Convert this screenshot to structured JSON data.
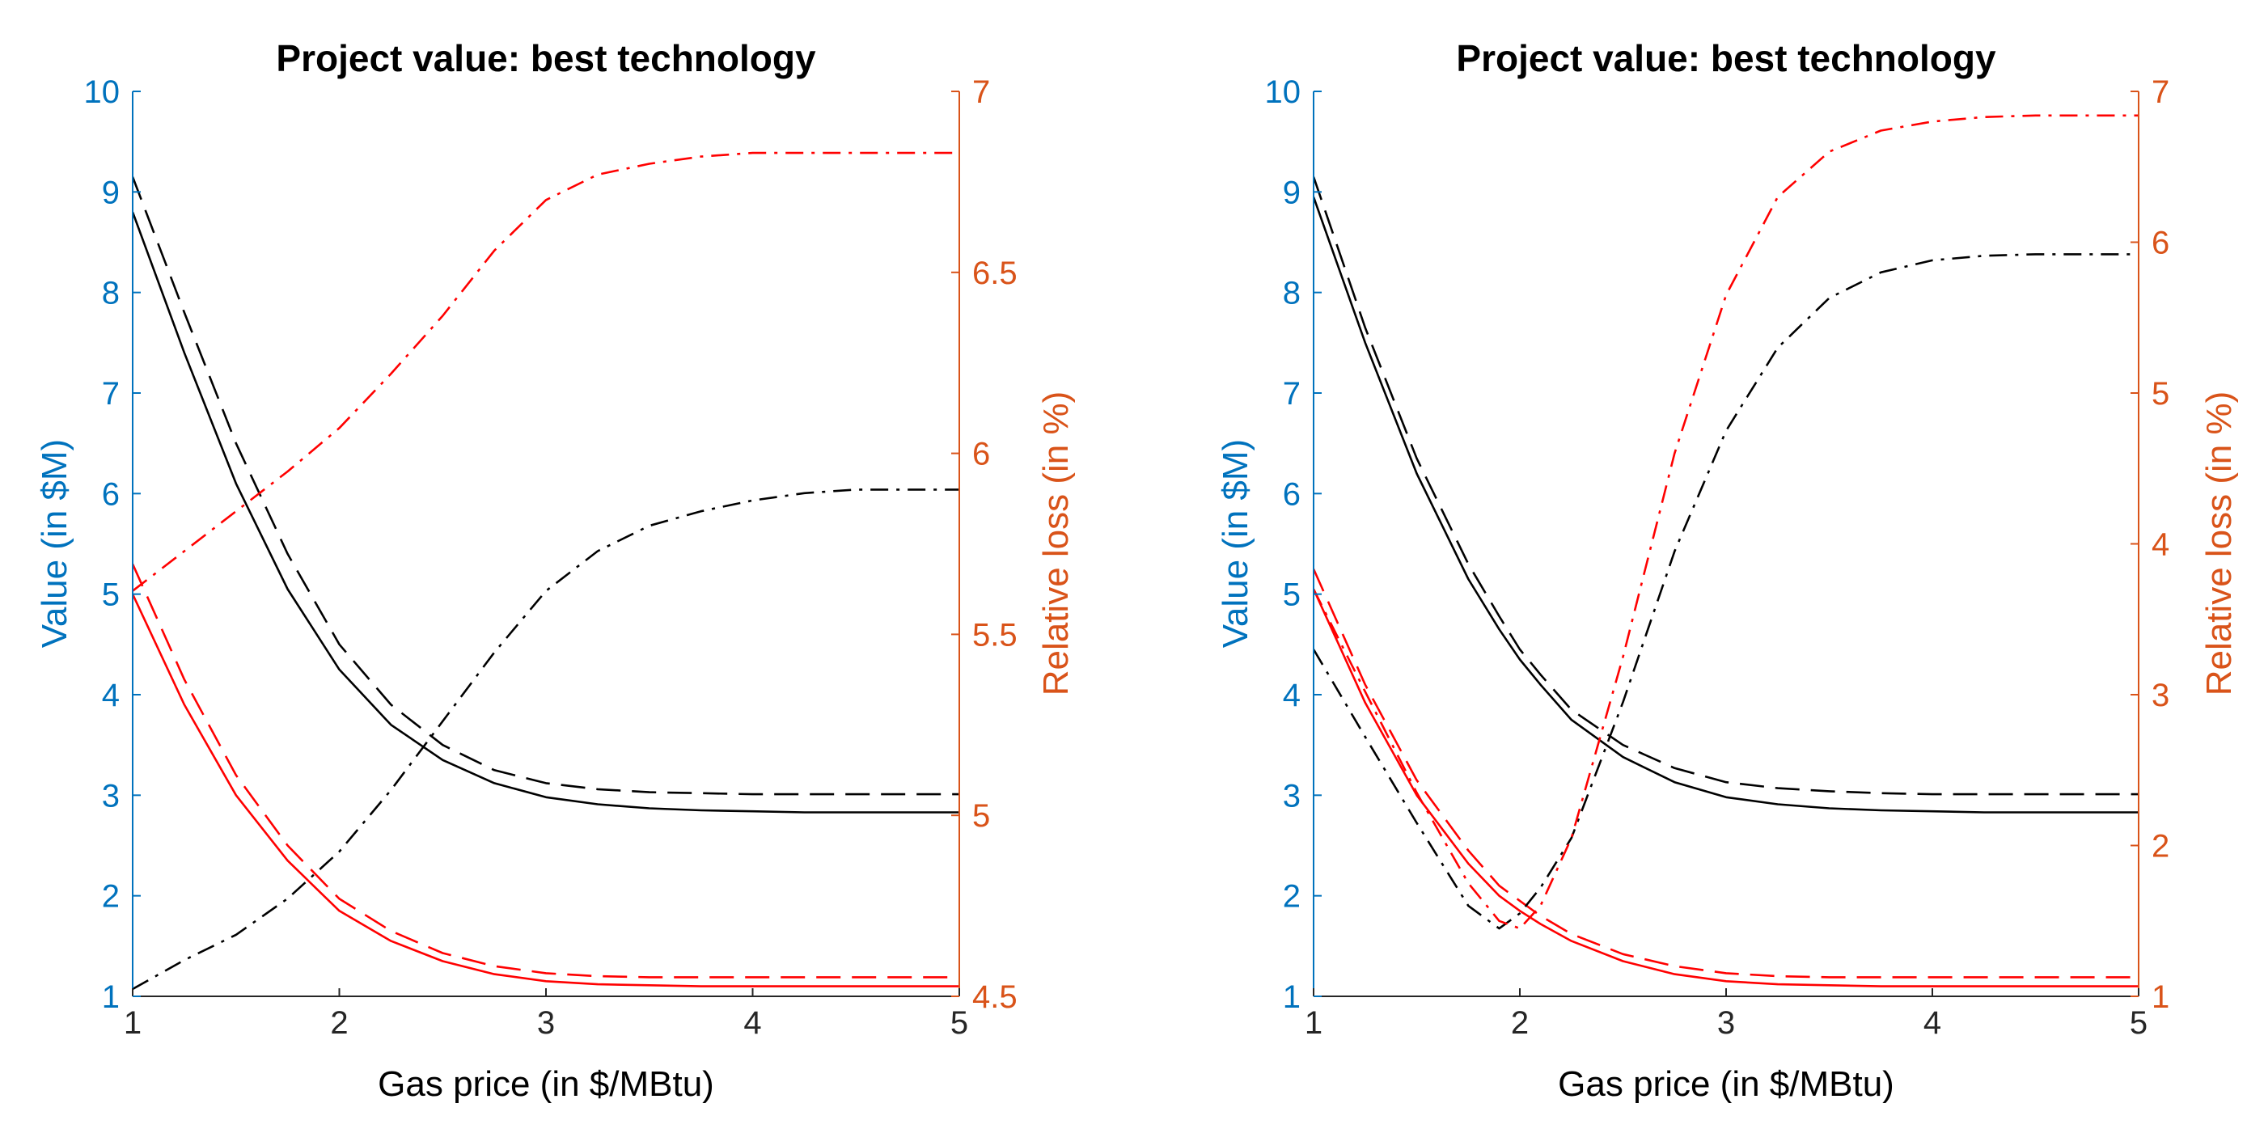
{
  "colors": {
    "left_axis": "#0072BD",
    "right_axis": "#D95319",
    "value_series": "#000000",
    "loss_series": "#FF0000",
    "axis_line": "#262626"
  },
  "chart_data": [
    {
      "type": "line",
      "title": "Project value: best technology",
      "xlabel": "Gas price (in $/MBtu)",
      "ylabel": "Value (in $M)",
      "ylabel_right": "Relative loss (in %)",
      "xlim": [
        1,
        5
      ],
      "ylim": [
        1,
        10
      ],
      "ylim_right": [
        4.5,
        7
      ],
      "x_ticks": [
        "1",
        "2",
        "3",
        "4",
        "5"
      ],
      "y_ticks": [
        "1",
        "2",
        "3",
        "4",
        "5",
        "6",
        "7",
        "8",
        "9",
        "10"
      ],
      "y_ticks_right": [
        "4.5",
        "5",
        "5.5",
        "6",
        "6.5",
        "7"
      ],
      "x": [
        1,
        1.25,
        1.5,
        1.75,
        2,
        2.25,
        2.5,
        2.75,
        3,
        3.25,
        3.5,
        3.75,
        4,
        4.25,
        4.5,
        4.75,
        5
      ],
      "series": [
        {
          "name": "value solid black",
          "axis": "left",
          "color": "#000000",
          "style": "solid",
          "values": [
            8.8,
            7.4,
            6.1,
            5.05,
            4.25,
            3.7,
            3.35,
            3.12,
            2.98,
            2.91,
            2.87,
            2.85,
            2.84,
            2.83,
            2.83,
            2.83,
            2.83
          ]
        },
        {
          "name": "value dashed black",
          "axis": "left",
          "color": "#000000",
          "style": "dashed",
          "values": [
            9.15,
            7.8,
            6.5,
            5.4,
            4.5,
            3.9,
            3.5,
            3.25,
            3.12,
            3.06,
            3.03,
            3.02,
            3.01,
            3.01,
            3.01,
            3.01,
            3.01
          ]
        },
        {
          "name": "value solid red",
          "axis": "left",
          "color": "#FF0000",
          "style": "solid",
          "values": [
            5.0,
            3.9,
            3.0,
            2.35,
            1.85,
            1.55,
            1.35,
            1.22,
            1.15,
            1.12,
            1.11,
            1.1,
            1.1,
            1.1,
            1.1,
            1.1,
            1.1
          ]
        },
        {
          "name": "value dashed red",
          "axis": "left",
          "color": "#FF0000",
          "style": "dashed",
          "values": [
            5.3,
            4.15,
            3.2,
            2.5,
            1.97,
            1.65,
            1.43,
            1.3,
            1.23,
            1.2,
            1.19,
            1.19,
            1.19,
            1.19,
            1.19,
            1.19,
            1.19
          ]
        },
        {
          "name": "relative loss black dash-dot",
          "axis": "right",
          "color": "#000000",
          "style": "dashdot",
          "values": [
            4.52,
            4.6,
            4.67,
            4.77,
            4.9,
            5.07,
            5.26,
            5.45,
            5.62,
            5.73,
            5.8,
            5.84,
            5.87,
            5.89,
            5.9,
            5.9,
            5.9
          ]
        },
        {
          "name": "relative loss red dash-dot",
          "axis": "right",
          "color": "#FF0000",
          "style": "dashdot",
          "values": [
            5.62,
            5.73,
            5.84,
            5.95,
            6.07,
            6.22,
            6.38,
            6.56,
            6.7,
            6.77,
            6.8,
            6.82,
            6.83,
            6.83,
            6.83,
            6.83,
            6.83
          ]
        }
      ]
    },
    {
      "type": "line",
      "title": "Project value: best technology",
      "xlabel": "Gas price (in $/MBtu)",
      "ylabel": "Value (in $M)",
      "ylabel_right": "Relative loss (in %)",
      "xlim": [
        1,
        5
      ],
      "ylim": [
        1,
        10
      ],
      "ylim_right": [
        1,
        7
      ],
      "x_ticks": [
        "1",
        "2",
        "3",
        "4",
        "5"
      ],
      "y_ticks": [
        "1",
        "2",
        "3",
        "4",
        "5",
        "6",
        "7",
        "8",
        "9",
        "10"
      ],
      "y_ticks_right": [
        "1",
        "2",
        "3",
        "4",
        "5",
        "6",
        "7"
      ],
      "x": [
        1,
        1.25,
        1.5,
        1.75,
        1.9,
        2,
        2.1,
        2.25,
        2.5,
        2.75,
        3,
        3.25,
        3.5,
        3.75,
        4,
        4.25,
        4.5,
        4.75,
        5
      ],
      "series": [
        {
          "name": "value solid black",
          "axis": "left",
          "color": "#000000",
          "style": "solid",
          "values": [
            8.95,
            7.5,
            6.2,
            5.15,
            4.65,
            4.35,
            4.1,
            3.75,
            3.38,
            3.13,
            2.98,
            2.91,
            2.87,
            2.85,
            2.84,
            2.83,
            2.83,
            2.83,
            2.83
          ]
        },
        {
          "name": "value dashed black",
          "axis": "left",
          "color": "#000000",
          "style": "dashed",
          "values": [
            9.15,
            7.65,
            6.35,
            5.3,
            4.78,
            4.45,
            4.2,
            3.85,
            3.5,
            3.27,
            3.13,
            3.07,
            3.04,
            3.02,
            3.01,
            3.01,
            3.01,
            3.01,
            3.01
          ]
        },
        {
          "name": "value solid red",
          "axis": "left",
          "color": "#FF0000",
          "style": "solid",
          "values": [
            5.05,
            3.92,
            3.0,
            2.32,
            2.0,
            1.85,
            1.72,
            1.55,
            1.35,
            1.22,
            1.15,
            1.12,
            1.11,
            1.1,
            1.1,
            1.1,
            1.1,
            1.1,
            1.1
          ]
        },
        {
          "name": "value dashed red",
          "axis": "left",
          "color": "#FF0000",
          "style": "dashed",
          "values": [
            5.25,
            4.1,
            3.15,
            2.45,
            2.1,
            1.95,
            1.8,
            1.62,
            1.42,
            1.3,
            1.23,
            1.2,
            1.19,
            1.19,
            1.19,
            1.19,
            1.19,
            1.19,
            1.19
          ]
        },
        {
          "name": "relative loss black dash-dot",
          "axis": "right",
          "color": "#000000",
          "style": "dashdot",
          "values": [
            3.3,
            2.72,
            2.15,
            1.6,
            1.45,
            1.55,
            1.72,
            2.05,
            2.95,
            3.95,
            4.75,
            5.3,
            5.63,
            5.8,
            5.88,
            5.91,
            5.92,
            5.92,
            5.92
          ]
        },
        {
          "name": "relative loss red dash-dot",
          "axis": "right",
          "color": "#FF0000",
          "style": "dashdot",
          "values": [
            3.7,
            3.02,
            2.35,
            1.75,
            1.5,
            1.45,
            1.6,
            2.05,
            3.25,
            4.6,
            5.65,
            6.3,
            6.6,
            6.74,
            6.8,
            6.83,
            6.84,
            6.84,
            6.84
          ]
        }
      ]
    }
  ]
}
